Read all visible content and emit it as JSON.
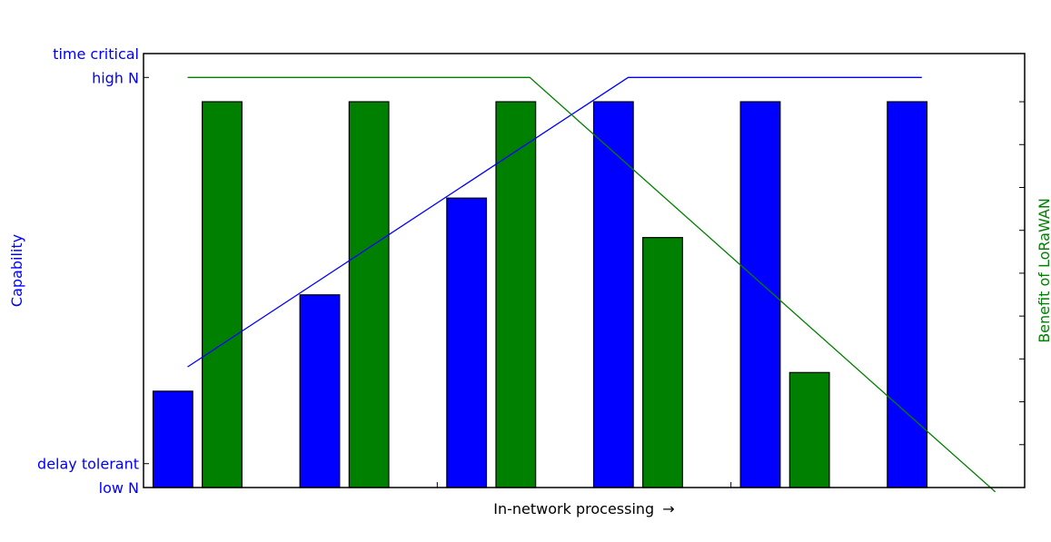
{
  "chart_data": {
    "type": "bar",
    "xlabel": "In-network processing",
    "xlabel_arrow": "→",
    "ylabel_left": "Capability",
    "ylabel_right": "Benefit of LoRaWAN",
    "ylim": [
      0,
      1
    ],
    "y_tick_labels": [
      {
        "text": "time critical",
        "value": 1.0
      },
      {
        "text": "high N",
        "value": 0.945
      },
      {
        "text": "delay tolerant",
        "value": 0.055
      },
      {
        "text": "low N",
        "value": 0.0
      }
    ],
    "xlim": [
      -0.3,
      5.7
    ],
    "categories_count": 6,
    "series": [
      {
        "color": "#0000ff",
        "values": [
          0.222,
          0.444,
          0.667,
          0.889,
          0.889,
          0.889
        ]
      },
      {
        "color": "#008000",
        "values": [
          0.889,
          0.889,
          0.889,
          0.576,
          0.265,
          0.0
        ]
      }
    ],
    "lines": [
      {
        "color": "#0000ff",
        "points": [
          [
            0,
            0.278
          ],
          [
            3,
            0.945
          ],
          [
            5,
            0.945
          ]
        ]
      },
      {
        "color": "#008000",
        "points": [
          [
            0,
            0.945
          ],
          [
            2.33,
            0.945
          ],
          [
            5.5,
            -0.01
          ]
        ]
      }
    ],
    "right_ticks_count": 9,
    "colors": {
      "left_axis": "#0000ff",
      "right_axis": "#008000",
      "axis": "#000000"
    }
  }
}
